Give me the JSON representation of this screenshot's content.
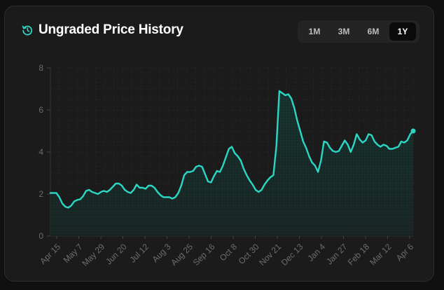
{
  "header": {
    "title": "Ungraded Price History",
    "icon": "history-icon"
  },
  "range_buttons": [
    {
      "label": "1M",
      "active": false
    },
    {
      "label": "3M",
      "active": false
    },
    {
      "label": "6M",
      "active": false
    },
    {
      "label": "1Y",
      "active": true
    }
  ],
  "colors": {
    "line": "#2cd5c4",
    "background": "#1b1b1b",
    "grid": "#2a2a2a"
  },
  "chart_data": {
    "type": "line",
    "title": "Ungraded Price History",
    "xlabel": "",
    "ylabel": "",
    "ylim": [
      0,
      8
    ],
    "yticks": [
      0,
      2,
      4,
      6,
      8
    ],
    "xtick_labels": [
      "Apr 15",
      "May 7",
      "May 29",
      "Jun 20",
      "Jul 12",
      "Aug 3",
      "Aug 25",
      "Sep 16",
      "Oct 8",
      "Oct 30",
      "Nov 21",
      "Dec 13",
      "Jan 4",
      "Jan 27",
      "Feb 18",
      "Mar 12",
      "Apr 6"
    ],
    "series": [
      {
        "name": "Ungraded",
        "values": [
          2.05,
          2.05,
          2.05,
          1.85,
          1.55,
          1.4,
          1.35,
          1.45,
          1.65,
          1.72,
          1.75,
          1.9,
          2.15,
          2.2,
          2.1,
          2.05,
          2.0,
          2.1,
          2.15,
          2.1,
          2.2,
          2.35,
          2.5,
          2.5,
          2.4,
          2.2,
          2.1,
          2.05,
          2.2,
          2.45,
          2.3,
          2.3,
          2.25,
          2.4,
          2.4,
          2.3,
          2.1,
          1.95,
          1.85,
          1.85,
          1.85,
          1.78,
          1.85,
          2.05,
          2.4,
          2.9,
          3.05,
          3.05,
          3.1,
          3.3,
          3.35,
          3.3,
          2.95,
          2.6,
          2.55,
          2.85,
          3.1,
          3.05,
          3.35,
          3.75,
          4.15,
          4.25,
          3.95,
          3.8,
          3.6,
          3.2,
          2.9,
          2.65,
          2.45,
          2.2,
          2.1,
          2.2,
          2.45,
          2.65,
          2.8,
          2.9,
          4.3,
          6.9,
          6.8,
          6.7,
          6.75,
          6.55,
          6.1,
          5.5,
          5.0,
          4.5,
          4.2,
          3.8,
          3.5,
          3.35,
          3.05,
          3.6,
          4.5,
          4.45,
          4.2,
          4.05,
          4.0,
          4.05,
          4.3,
          4.55,
          4.35,
          4.0,
          4.35,
          4.85,
          4.6,
          4.45,
          4.55,
          4.85,
          4.8,
          4.5,
          4.35,
          4.25,
          4.35,
          4.3,
          4.15,
          4.15,
          4.2,
          4.25,
          4.5,
          4.45,
          4.55,
          4.85,
          5.0
        ]
      }
    ],
    "last_point_marker": true,
    "grid": true
  }
}
